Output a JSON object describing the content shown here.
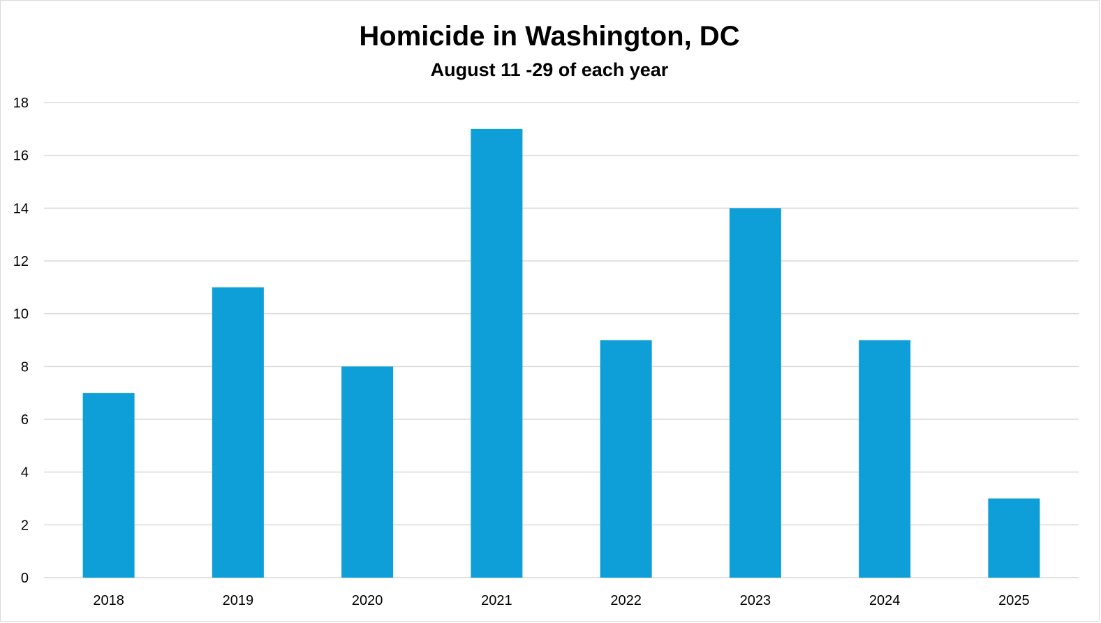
{
  "chart_data": {
    "type": "bar",
    "title": "Homicide in Washington, DC",
    "subtitle": "August 11 -29 of each year",
    "xlabel": "",
    "ylabel": "",
    "categories": [
      "2018",
      "2019",
      "2020",
      "2021",
      "2022",
      "2023",
      "2024",
      "2025"
    ],
    "values": [
      7,
      11,
      8,
      17,
      9,
      14,
      9,
      3
    ],
    "ylim": [
      0,
      18
    ],
    "yticks": [
      "0",
      "2",
      "4",
      "6",
      "8",
      "10",
      "12",
      "14",
      "16",
      "18"
    ],
    "grid": true,
    "legend": "none",
    "colors": {
      "bar": "#0f9fd8",
      "grid": "#d9d9d9",
      "axis": "#d9d9d9",
      "text": "#000000"
    }
  }
}
